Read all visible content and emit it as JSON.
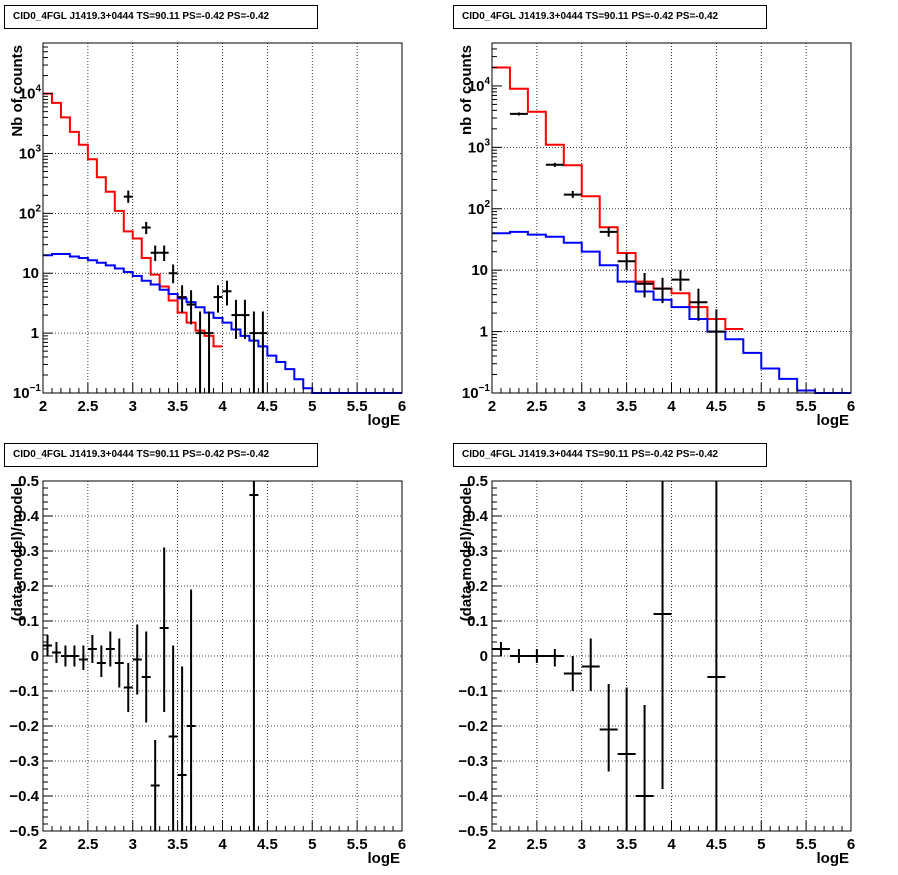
{
  "chart_data": [
    {
      "id": "tl",
      "type": "histogram-log",
      "title": "CID0_4FGL J1419.3+0444 TS=90.11 PS=-0.42 PS=-0.42",
      "xlabel": "logE",
      "ylabel": "Nb of counts",
      "xlim": [
        2,
        6
      ],
      "ylim": [
        0.1,
        70000
      ],
      "log_y": true,
      "grid": true,
      "x_ticks": [
        "2",
        "2.5",
        "3",
        "3.5",
        "4",
        "4.5",
        "5",
        "5.5",
        "6"
      ],
      "y_ticks": [
        {
          "v": 0.1,
          "main": "10",
          "exp": "−1"
        },
        {
          "v": 1,
          "main": "1",
          "exp": ""
        },
        {
          "v": 10,
          "main": "10",
          "exp": ""
        },
        {
          "v": 100,
          "main": "10",
          "exp": "2"
        },
        {
          "v": 1000,
          "main": "10",
          "exp": "3"
        },
        {
          "v": 10000,
          "main": "10",
          "exp": "4"
        }
      ],
      "bin_width": 0.1,
      "series": [
        {
          "color": "#ff0000",
          "edges_start": 2.0,
          "values": [
            10000,
            7000,
            4000,
            2300,
            1400,
            800,
            400,
            230,
            110,
            50,
            38,
            18,
            9.5,
            6,
            3.5,
            2.2,
            1.5,
            1.1,
            0.9,
            0.6
          ]
        },
        {
          "color": "#0000ff",
          "edges_start": 2.0,
          "values": [
            20,
            21,
            21,
            19,
            18,
            16.5,
            15,
            13.5,
            12,
            10.5,
            9,
            7.5,
            6.5,
            5.3,
            4.5,
            3.8,
            3.3,
            2.7,
            2.2,
            1.8,
            1.5,
            1.15,
            0.9,
            0.75,
            0.6,
            0.42,
            0.33,
            0.25,
            0.17,
            0.12,
            0.1,
            0.1,
            0.1,
            0.1,
            0.1,
            0.1,
            0.1,
            0.1,
            0.1,
            0.1
          ]
        }
      ],
      "points": [
        {
          "x": 2.95,
          "y": 190,
          "lo": 150,
          "hi": 240
        },
        {
          "x": 3.15,
          "y": 58,
          "lo": 45,
          "hi": 72
        },
        {
          "x": 3.25,
          "y": 22,
          "lo": 16,
          "hi": 29
        },
        {
          "x": 3.35,
          "y": 22,
          "lo": 16,
          "hi": 29
        },
        {
          "x": 3.45,
          "y": 10,
          "lo": 6.8,
          "hi": 14
        },
        {
          "x": 3.55,
          "y": 4,
          "lo": 2.2,
          "hi": 6.3
        },
        {
          "x": 3.65,
          "y": 3,
          "lo": 1.4,
          "hi": 5.2
        },
        {
          "x": 3.75,
          "y": 1,
          "lo": 0.1,
          "hi": 2.3
        },
        {
          "x": 3.85,
          "y": 1,
          "lo": 0.1,
          "hi": 2.3
        },
        {
          "x": 3.95,
          "y": 4,
          "lo": 2.2,
          "hi": 6.3
        },
        {
          "x": 4.05,
          "y": 5,
          "lo": 2.9,
          "hi": 7.5
        },
        {
          "x": 4.15,
          "y": 2,
          "lo": 0.8,
          "hi": 3.6
        },
        {
          "x": 4.25,
          "y": 2,
          "lo": 0.8,
          "hi": 3.6
        },
        {
          "x": 4.35,
          "y": 1,
          "lo": 0.1,
          "hi": 2.3
        },
        {
          "x": 4.45,
          "y": 1,
          "lo": 0.1,
          "hi": 2.3
        }
      ]
    },
    {
      "id": "tr",
      "type": "histogram-log",
      "title": "CID0_4FGL J1419.3+0444 TS=90.11 PS=-0.42 PS=-0.42",
      "xlabel": "logE",
      "ylabel": "nb of counts",
      "xlim": [
        2,
        6
      ],
      "ylim": [
        0.1,
        50000
      ],
      "log_y": true,
      "grid": true,
      "x_ticks": [
        "2",
        "2.5",
        "3",
        "3.5",
        "4",
        "4.5",
        "5",
        "5.5",
        "6"
      ],
      "y_ticks": [
        {
          "v": 0.1,
          "main": "10",
          "exp": "−1"
        },
        {
          "v": 1,
          "main": "1",
          "exp": ""
        },
        {
          "v": 10,
          "main": "10",
          "exp": ""
        },
        {
          "v": 100,
          "main": "10",
          "exp": "2"
        },
        {
          "v": 1000,
          "main": "10",
          "exp": "3"
        },
        {
          "v": 10000,
          "main": "10",
          "exp": "4"
        }
      ],
      "bin_width": 0.2,
      "series": [
        {
          "color": "#ff0000",
          "edges_start": 2.0,
          "values": [
            20000,
            9000,
            3800,
            1100,
            510,
            160,
            50,
            19,
            6.5,
            5,
            4.2,
            2.5,
            1.6,
            1.1
          ]
        },
        {
          "color": "#0000ff",
          "edges_start": 2.0,
          "values": [
            40,
            42,
            38,
            35,
            28,
            20,
            12,
            6.5,
            4.5,
            3.3,
            2.5,
            1.6,
            1.0,
            0.75,
            0.45,
            0.25,
            0.17,
            0.11,
            0.1,
            0.1
          ]
        }
      ],
      "points": [
        {
          "x": 2.3,
          "y": 3500,
          "lo": 3300,
          "hi": 3700
        },
        {
          "x": 2.7,
          "y": 520,
          "lo": 480,
          "hi": 560
        },
        {
          "x": 2.9,
          "y": 170,
          "lo": 150,
          "hi": 195
        },
        {
          "x": 3.3,
          "y": 42,
          "lo": 35,
          "hi": 50
        },
        {
          "x": 3.5,
          "y": 14,
          "lo": 10,
          "hi": 19
        },
        {
          "x": 3.7,
          "y": 6,
          "lo": 3.6,
          "hi": 9
        },
        {
          "x": 3.9,
          "y": 5,
          "lo": 2.9,
          "hi": 7.5
        },
        {
          "x": 4.1,
          "y": 7,
          "lo": 4.6,
          "hi": 10
        },
        {
          "x": 4.3,
          "y": 3,
          "lo": 1.5,
          "hi": 5
        },
        {
          "x": 4.5,
          "y": 1,
          "lo": 0.1,
          "hi": 2.3
        }
      ]
    },
    {
      "id": "bl",
      "type": "scatter-errorbars",
      "title": "CID0_4FGL J1419.3+0444 TS=90.11 PS=-0.42 PS=-0.42",
      "xlabel": "logE",
      "ylabel": "(data-model)/model",
      "xlim": [
        2,
        6
      ],
      "ylim": [
        -0.5,
        0.5
      ],
      "log_y": false,
      "grid": true,
      "x_ticks": [
        "2",
        "2.5",
        "3",
        "3.5",
        "4",
        "4.5",
        "5",
        "5.5",
        "6"
      ],
      "y_ticks": [
        "−0.5",
        "−0.4",
        "−0.3",
        "−0.2",
        "−0.1",
        "0",
        "0.1",
        "0.2",
        "0.3",
        "0.4",
        "0.5"
      ],
      "bin_width": 0.1,
      "points": [
        {
          "x": 2.05,
          "y": 0.03,
          "lo": 0.0,
          "hi": 0.06
        },
        {
          "x": 2.15,
          "y": 0.01,
          "lo": -0.02,
          "hi": 0.04
        },
        {
          "x": 2.25,
          "y": 0.0,
          "lo": -0.03,
          "hi": 0.03
        },
        {
          "x": 2.35,
          "y": 0.0,
          "lo": -0.03,
          "hi": 0.03
        },
        {
          "x": 2.45,
          "y": -0.01,
          "lo": -0.04,
          "hi": 0.03
        },
        {
          "x": 2.55,
          "y": 0.02,
          "lo": -0.02,
          "hi": 0.06
        },
        {
          "x": 2.65,
          "y": -0.02,
          "lo": -0.06,
          "hi": 0.03
        },
        {
          "x": 2.75,
          "y": 0.02,
          "lo": -0.03,
          "hi": 0.07
        },
        {
          "x": 2.85,
          "y": -0.02,
          "lo": -0.09,
          "hi": 0.05
        },
        {
          "x": 2.95,
          "y": -0.09,
          "lo": -0.16,
          "hi": -0.02
        },
        {
          "x": 3.05,
          "y": -0.01,
          "lo": -0.11,
          "hi": 0.09
        },
        {
          "x": 3.15,
          "y": -0.06,
          "lo": -0.19,
          "hi": 0.07
        },
        {
          "x": 3.25,
          "y": -0.37,
          "lo": -0.5,
          "hi": -0.24
        },
        {
          "x": 3.35,
          "y": 0.08,
          "lo": -0.16,
          "hi": 0.31
        },
        {
          "x": 3.45,
          "y": -0.23,
          "lo": -0.5,
          "hi": 0.03
        },
        {
          "x": 3.55,
          "y": -0.34,
          "lo": -0.5,
          "hi": -0.03
        },
        {
          "x": 3.65,
          "y": -0.2,
          "lo": -0.5,
          "hi": 0.19
        },
        {
          "x": 4.35,
          "y": 0.46,
          "lo": -0.5,
          "hi": 0.5
        }
      ]
    },
    {
      "id": "br",
      "type": "scatter-errorbars",
      "title": "CID0_4FGL J1419.3+0444 TS=90.11 PS=-0.42 PS=-0.42",
      "xlabel": "logE",
      "ylabel": "(data-model)/model",
      "xlim": [
        2,
        6
      ],
      "ylim": [
        -0.5,
        0.5
      ],
      "log_y": false,
      "grid": true,
      "x_ticks": [
        "2",
        "2.5",
        "3",
        "3.5",
        "4",
        "4.5",
        "5",
        "5.5",
        "6"
      ],
      "y_ticks": [
        "−0.5",
        "−0.4",
        "−0.3",
        "−0.2",
        "−0.1",
        "0",
        "0.1",
        "0.2",
        "0.3",
        "0.4",
        "0.5"
      ],
      "bin_width": 0.2,
      "points": [
        {
          "x": 2.1,
          "y": 0.02,
          "lo": 0.0,
          "hi": 0.04
        },
        {
          "x": 2.3,
          "y": 0.0,
          "lo": -0.02,
          "hi": 0.02
        },
        {
          "x": 2.5,
          "y": 0.0,
          "lo": -0.02,
          "hi": 0.02
        },
        {
          "x": 2.7,
          "y": 0.0,
          "lo": -0.03,
          "hi": 0.02
        },
        {
          "x": 2.9,
          "y": -0.05,
          "lo": -0.1,
          "hi": 0.0
        },
        {
          "x": 3.1,
          "y": -0.03,
          "lo": -0.1,
          "hi": 0.05
        },
        {
          "x": 3.3,
          "y": -0.21,
          "lo": -0.33,
          "hi": -0.08
        },
        {
          "x": 3.5,
          "y": -0.28,
          "lo": -0.5,
          "hi": -0.09
        },
        {
          "x": 3.7,
          "y": -0.4,
          "lo": -0.5,
          "hi": -0.14
        },
        {
          "x": 3.9,
          "y": 0.12,
          "lo": -0.38,
          "hi": 0.5
        },
        {
          "x": 4.5,
          "y": -0.06,
          "lo": -0.5,
          "hi": 0.5
        }
      ]
    }
  ]
}
